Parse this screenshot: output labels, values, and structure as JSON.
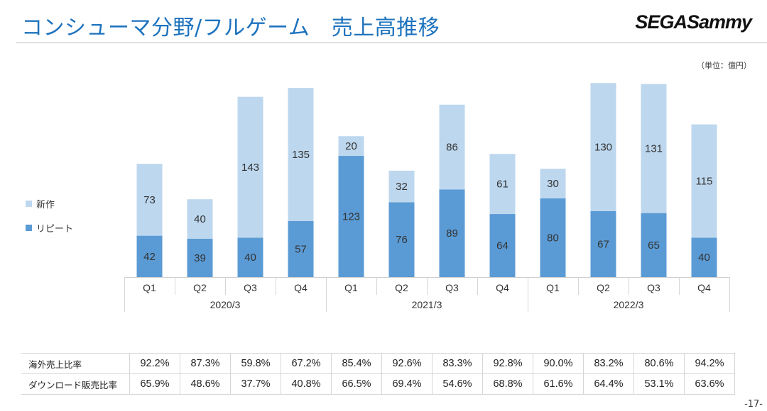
{
  "header": {
    "title": "コンシューマ分野/フルゲーム　売上高推移",
    "logo": "SEGASammy",
    "unit": "（単位：億円）",
    "page": "-17-"
  },
  "colors": {
    "new": "#bdd7ee",
    "repeat": "#5b9bd5"
  },
  "chart_data": {
    "type": "bar",
    "stacked": true,
    "unit": "億円",
    "categories": [
      "Q1",
      "Q2",
      "Q3",
      "Q4",
      "Q1",
      "Q2",
      "Q3",
      "Q4",
      "Q1",
      "Q2",
      "Q3",
      "Q4"
    ],
    "groups": [
      {
        "label": "2020/3",
        "count": 4
      },
      {
        "label": "2021/3",
        "count": 4
      },
      {
        "label": "2022/3",
        "count": 4
      }
    ],
    "series": [
      {
        "name": "リピート",
        "values": [
          42,
          39,
          40,
          57,
          123,
          76,
          89,
          64,
          80,
          67,
          65,
          40
        ]
      },
      {
        "name": "新作",
        "values": [
          73,
          40,
          143,
          135,
          20,
          32,
          86,
          61,
          30,
          130,
          131,
          115
        ]
      }
    ],
    "legend": [
      "新作",
      "リピート"
    ]
  },
  "table": {
    "rows": [
      {
        "label": "海外売上比率",
        "values": [
          "92.2%",
          "87.3%",
          "59.8%",
          "67.2%",
          "85.4%",
          "92.6%",
          "83.3%",
          "92.8%",
          "90.0%",
          "83.2%",
          "80.6%",
          "94.2%"
        ]
      },
      {
        "label": "ダウンロード販売比率",
        "values": [
          "65.9%",
          "48.6%",
          "37.7%",
          "40.8%",
          "66.5%",
          "69.4%",
          "54.6%",
          "68.8%",
          "61.6%",
          "64.4%",
          "53.1%",
          "63.6%"
        ]
      }
    ]
  }
}
